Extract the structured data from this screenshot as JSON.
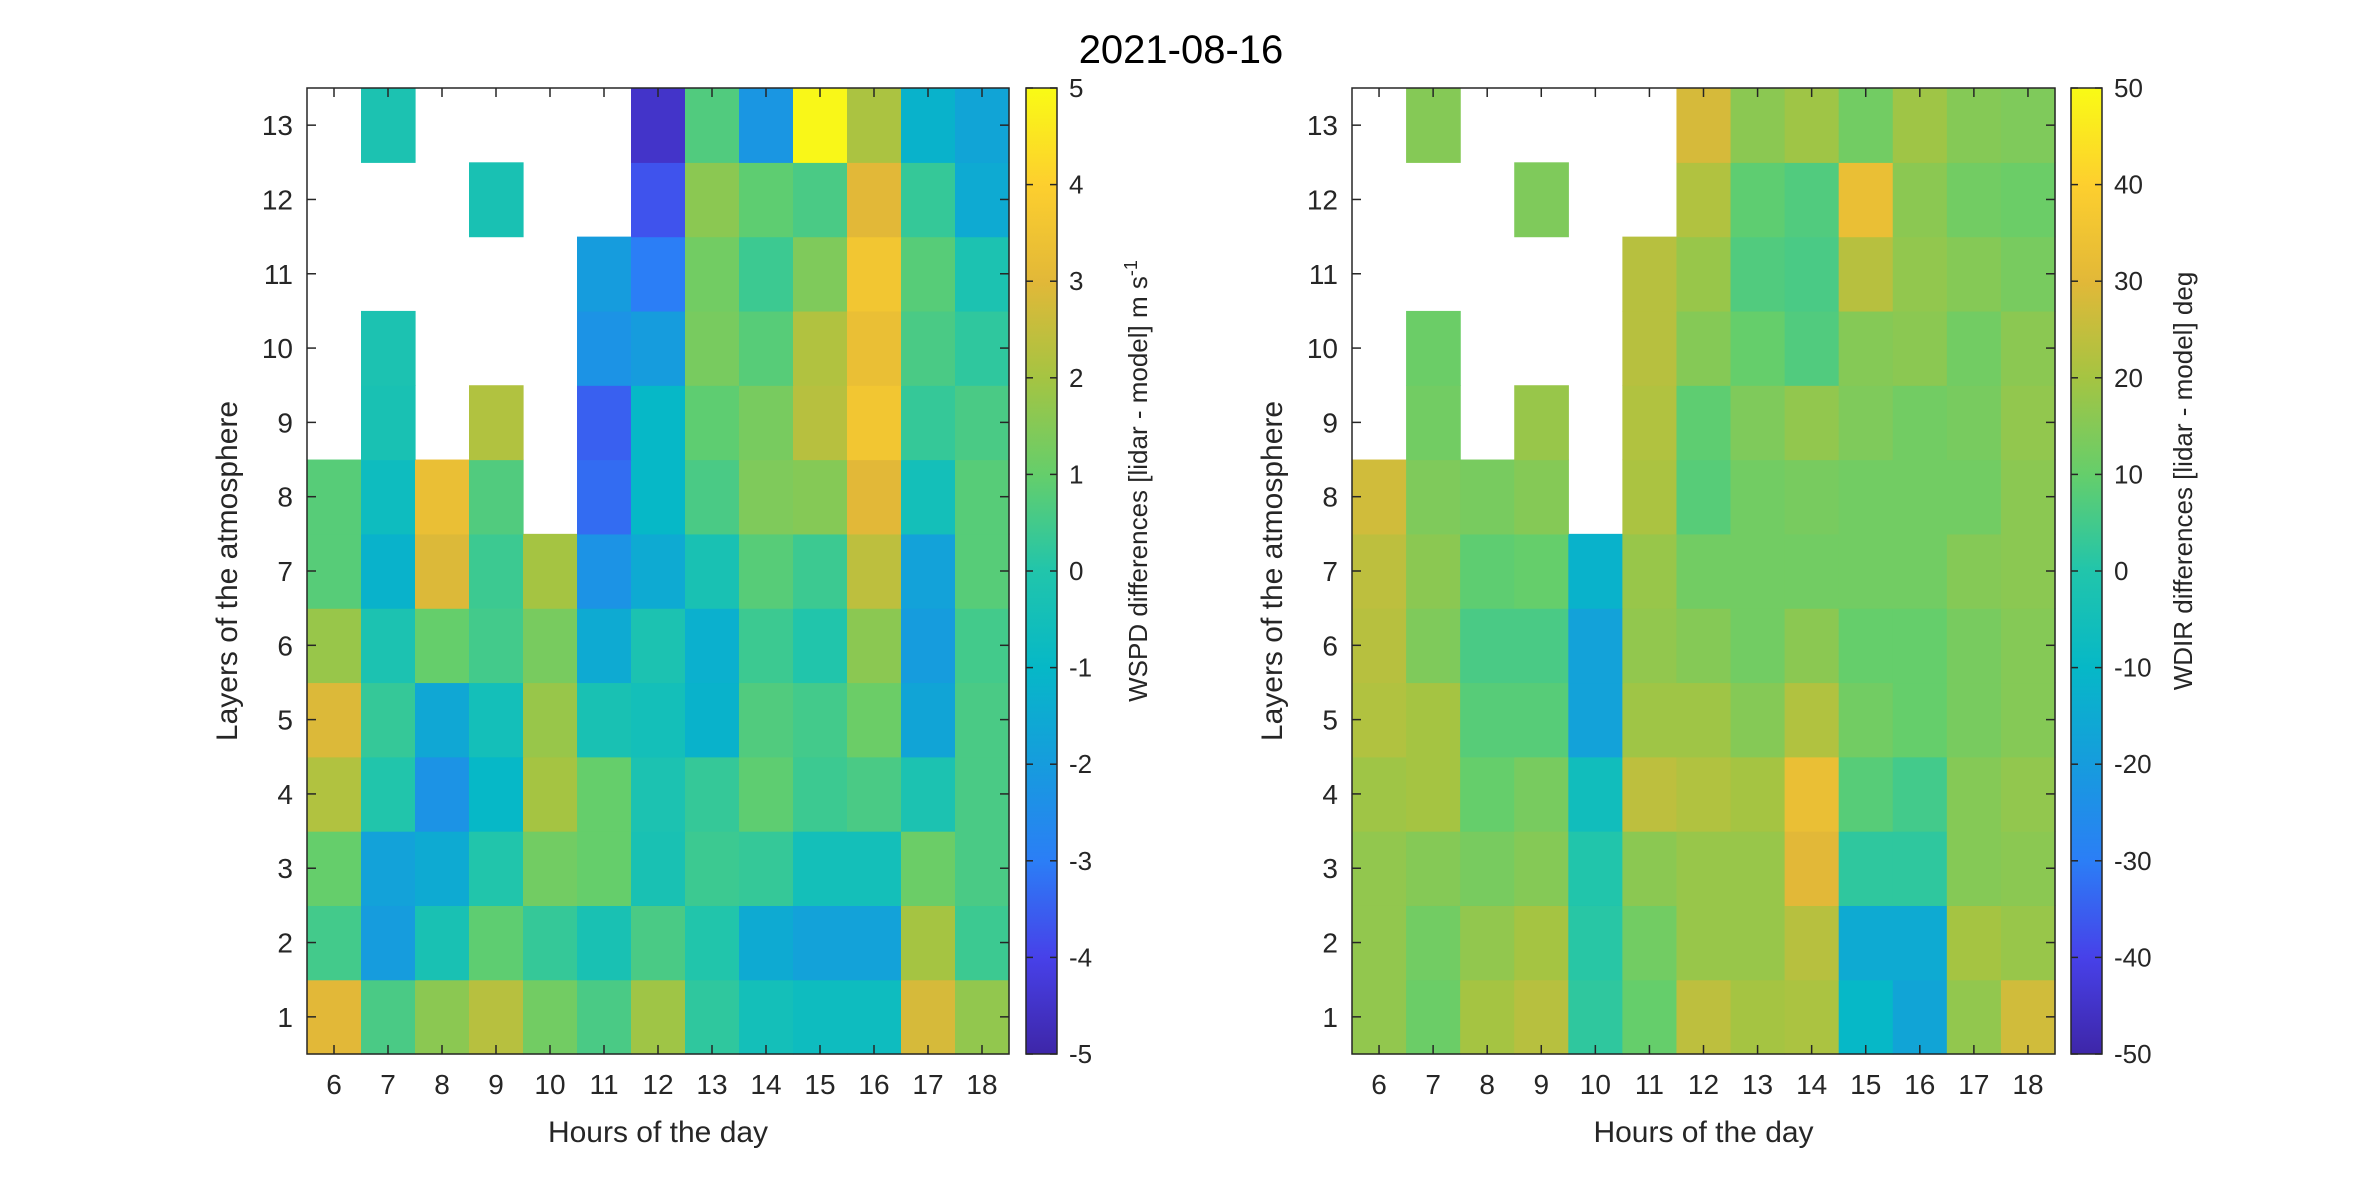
{
  "title": "2021-08-16",
  "chart_data": [
    {
      "type": "heatmap",
      "title": "",
      "xlabel": "Hours of the day",
      "ylabel": "Layers of the atmosphere",
      "x": [
        6,
        7,
        8,
        9,
        10,
        11,
        12,
        13,
        14,
        15,
        16,
        17,
        18
      ],
      "y": [
        1,
        2,
        3,
        4,
        5,
        6,
        7,
        8,
        9,
        10,
        11,
        12,
        13
      ],
      "colorbar": {
        "label": "WSPD differences [lidar - model] m s",
        "label_superscript": "-1",
        "ticks": [
          -5,
          -4,
          -3,
          -2,
          -1,
          0,
          1,
          2,
          3,
          4,
          5
        ],
        "limits": [
          -5,
          5
        ],
        "colormap": "parula"
      },
      "values": [
        [
          3.0,
          0.6,
          1.6,
          2.3,
          1.2,
          0.6,
          1.9,
          0.2,
          -0.5,
          -0.7,
          -0.7,
          2.8,
          1.7
        ],
        [
          0.5,
          -2.0,
          -0.3,
          0.9,
          0.3,
          -0.3,
          0.6,
          0.0,
          -1.5,
          -1.8,
          -1.8,
          2.0,
          0.4
        ],
        [
          1.0,
          -1.8,
          -1.5,
          0.0,
          1.2,
          1.0,
          -0.3,
          0.4,
          0.3,
          -0.5,
          -0.5,
          1.1,
          0.6
        ],
        [
          2.2,
          0.0,
          -2.3,
          -1.0,
          2.0,
          1.0,
          -0.2,
          0.3,
          0.9,
          0.4,
          0.6,
          -0.2,
          0.6
        ],
        [
          2.9,
          0.3,
          -1.6,
          -0.5,
          1.8,
          -0.3,
          -0.5,
          -1.2,
          0.7,
          0.5,
          1.1,
          -1.7,
          0.6
        ],
        [
          1.8,
          -0.2,
          1.0,
          0.5,
          1.3,
          -1.5,
          -0.2,
          -1.3,
          0.4,
          0.0,
          1.6,
          -2.0,
          0.5
        ],
        [
          0.8,
          -1.2,
          2.9,
          0.4,
          2.0,
          -2.3,
          -1.5,
          -0.3,
          0.8,
          0.4,
          2.4,
          -1.8,
          0.8
        ],
        [
          0.8,
          -0.7,
          3.3,
          0.7,
          null,
          -3.3,
          -1.0,
          0.6,
          1.4,
          1.5,
          3.0,
          -0.5,
          0.8
        ],
        [
          null,
          -0.3,
          null,
          2.2,
          null,
          -3.5,
          -1.0,
          0.9,
          1.3,
          2.3,
          3.6,
          0.3,
          0.6
        ],
        [
          null,
          -0.2,
          null,
          null,
          null,
          -2.3,
          -2.0,
          1.3,
          0.8,
          2.2,
          3.3,
          0.6,
          0.2
        ],
        [
          null,
          null,
          null,
          null,
          null,
          -2.0,
          -3.0,
          1.2,
          0.4,
          1.4,
          3.6,
          0.8,
          -0.2
        ],
        [
          null,
          null,
          null,
          -0.3,
          null,
          null,
          -3.7,
          1.6,
          0.9,
          0.6,
          3.0,
          0.3,
          -1.5
        ],
        [
          null,
          -0.2,
          null,
          null,
          null,
          null,
          -4.5,
          0.7,
          -2.2,
          4.9,
          2.1,
          -1.2,
          -1.7
        ]
      ]
    },
    {
      "type": "heatmap",
      "title": "",
      "xlabel": "Hours of the day",
      "ylabel": "Layers of the atmosphere",
      "x": [
        6,
        7,
        8,
        9,
        10,
        11,
        12,
        13,
        14,
        15,
        16,
        17,
        18
      ],
      "y": [
        1,
        2,
        3,
        4,
        5,
        6,
        7,
        8,
        9,
        10,
        11,
        12,
        13
      ],
      "colorbar": {
        "label": "WDIR differences [lidar - model] deg",
        "label_superscript": "",
        "ticks": [
          -50,
          -40,
          -30,
          -20,
          -10,
          0,
          10,
          20,
          30,
          40,
          50
        ],
        "limits": [
          -50,
          50
        ],
        "colormap": "parula"
      },
      "values": [
        [
          17,
          11,
          20,
          23,
          2,
          10,
          24,
          20,
          21,
          -10,
          -17,
          17,
          27
        ],
        [
          17,
          12,
          17,
          20,
          1,
          12,
          18,
          18,
          23,
          -15,
          -15,
          20,
          18
        ],
        [
          17,
          15,
          13,
          15,
          0,
          16,
          18,
          18,
          30,
          2,
          2,
          15,
          16
        ],
        [
          19,
          20,
          10,
          13,
          -6,
          24,
          22,
          20,
          33,
          8,
          5,
          15,
          17
        ],
        [
          22,
          20,
          8,
          8,
          -18,
          19,
          19,
          15,
          22,
          12,
          10,
          13,
          15
        ],
        [
          23,
          14,
          6,
          6,
          -18,
          17,
          15,
          12,
          16,
          10,
          10,
          13,
          15
        ],
        [
          24,
          16,
          9,
          10,
          -12,
          18,
          12,
          12,
          12,
          12,
          12,
          15,
          16
        ],
        [
          27,
          14,
          13,
          15,
          null,
          21,
          8,
          12,
          13,
          12,
          12,
          12,
          16
        ],
        [
          null,
          12,
          null,
          18,
          null,
          22,
          9,
          14,
          17,
          14,
          12,
          13,
          17
        ],
        [
          null,
          11,
          null,
          null,
          null,
          23,
          15,
          10,
          7,
          15,
          16,
          12,
          16
        ],
        [
          null,
          null,
          null,
          null,
          null,
          23,
          18,
          7,
          6,
          23,
          17,
          15,
          13
        ],
        [
          null,
          null,
          null,
          14,
          null,
          null,
          22,
          9,
          7,
          33,
          16,
          12,
          11
        ],
        [
          null,
          15,
          null,
          null,
          null,
          null,
          28,
          16,
          19,
          12,
          19,
          15,
          14
        ]
      ]
    }
  ]
}
